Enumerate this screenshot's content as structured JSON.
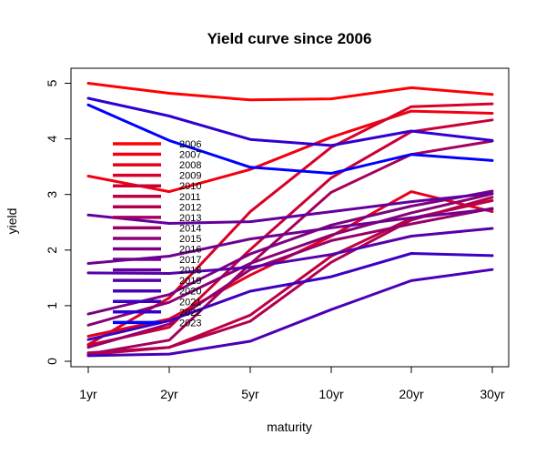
{
  "chart_data": {
    "type": "line",
    "title": "Yield curve since 2006",
    "xlabel": "maturity",
    "ylabel": "yield",
    "categories": [
      "1yr",
      "2yr",
      "5yr",
      "10yr",
      "20yr",
      "30yr"
    ],
    "yticks": [
      "0",
      "1",
      "2",
      "3",
      "4",
      "5"
    ],
    "ylim": [
      -0.1,
      5.2
    ],
    "grid": false,
    "legend_position": "left-center, inside plot",
    "series": [
      {
        "name": "2006",
        "color": "#ff0000",
        "values": [
          5.0,
          4.82,
          4.7,
          4.72,
          4.92,
          4.8
        ]
      },
      {
        "name": "2007",
        "color": "#f20010",
        "values": [
          3.33,
          3.05,
          3.45,
          4.03,
          4.5,
          4.46
        ]
      },
      {
        "name": "2008",
        "color": "#e5001b",
        "values": [
          0.45,
          0.76,
          1.55,
          2.25,
          3.05,
          2.69
        ]
      },
      {
        "name": "2009",
        "color": "#d80028",
        "values": [
          0.3,
          1.14,
          2.69,
          3.85,
          4.58,
          4.63
        ]
      },
      {
        "name": "2010",
        "color": "#cb0035",
        "values": [
          0.29,
          0.61,
          2.01,
          3.3,
          4.13,
          4.34
        ]
      },
      {
        "name": "2011",
        "color": "#be0042",
        "values": [
          0.12,
          0.25,
          0.83,
          1.89,
          2.57,
          2.89
        ]
      },
      {
        "name": "2012",
        "color": "#b1004f",
        "values": [
          0.15,
          0.25,
          0.72,
          1.78,
          2.54,
          2.95
        ]
      },
      {
        "name": "2013",
        "color": "#a4005c",
        "values": [
          0.13,
          0.38,
          1.75,
          3.04,
          3.72,
          3.96
        ]
      },
      {
        "name": "2014",
        "color": "#970069",
        "values": [
          0.25,
          0.67,
          1.65,
          2.17,
          2.47,
          2.75
        ]
      },
      {
        "name": "2015",
        "color": "#8a0076",
        "values": [
          0.65,
          1.06,
          1.76,
          2.27,
          2.67,
          3.01
        ]
      },
      {
        "name": "2016",
        "color": "#7d0083",
        "values": [
          0.85,
          1.2,
          1.93,
          2.45,
          2.79,
          3.06
        ]
      },
      {
        "name": "2017",
        "color": "#700090",
        "values": [
          1.76,
          1.89,
          2.2,
          2.4,
          2.58,
          2.74
        ]
      },
      {
        "name": "2018",
        "color": "#63009d",
        "values": [
          2.63,
          2.48,
          2.51,
          2.69,
          2.87,
          3.02
        ]
      },
      {
        "name": "2019",
        "color": "#5600aa",
        "values": [
          1.59,
          1.58,
          1.69,
          1.92,
          2.25,
          2.39
        ]
      },
      {
        "name": "2020",
        "color": "#4900b7",
        "values": [
          0.1,
          0.13,
          0.36,
          0.93,
          1.45,
          1.65
        ]
      },
      {
        "name": "2021",
        "color": "#3c00c4",
        "values": [
          0.39,
          0.73,
          1.26,
          1.52,
          1.94,
          1.9
        ]
      },
      {
        "name": "2022",
        "color": "#2f00d1",
        "values": [
          4.73,
          4.41,
          3.99,
          3.88,
          4.14,
          3.97
        ]
      },
      {
        "name": "2023",
        "color": "#0000ff",
        "values": [
          4.61,
          3.97,
          3.49,
          3.38,
          3.72,
          3.61
        ]
      }
    ]
  }
}
